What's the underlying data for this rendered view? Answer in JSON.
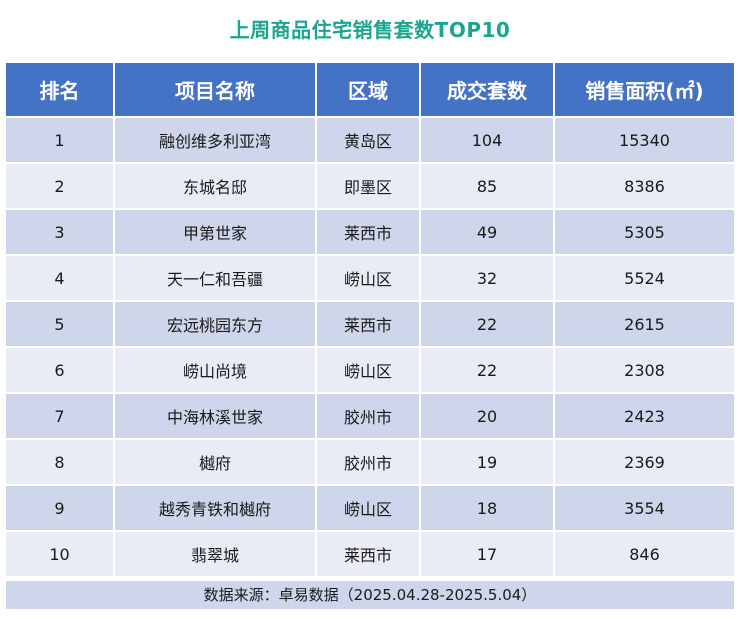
{
  "title": "上周商品住宅销售套数TOP10",
  "chart_data": {
    "type": "table",
    "columns": [
      "排名",
      "项目名称",
      "区域",
      "成交套数",
      "销售面积(㎡)"
    ],
    "rows": [
      [
        "1",
        "融创维多利亚湾",
        "黄岛区",
        "104",
        "15340"
      ],
      [
        "2",
        "东城名邸",
        "即墨区",
        "85",
        "8386"
      ],
      [
        "3",
        "甲第世家",
        "莱西市",
        "49",
        "5305"
      ],
      [
        "4",
        "天一仁和吾疆",
        "崂山区",
        "32",
        "5524"
      ],
      [
        "5",
        "宏远桃园东方",
        "莱西市",
        "22",
        "2615"
      ],
      [
        "6",
        "崂山尚境",
        "崂山区",
        "22",
        "2308"
      ],
      [
        "7",
        "中海林溪世家",
        "胶州市",
        "20",
        "2423"
      ],
      [
        "8",
        "樾府",
        "胶州市",
        "19",
        "2369"
      ],
      [
        "9",
        "越秀青铁和樾府",
        "崂山区",
        "18",
        "3554"
      ],
      [
        "10",
        "翡翠城",
        "莱西市",
        "17",
        "846"
      ]
    ]
  },
  "source": "数据来源：卓易数据（2025.04.28-2025.5.04）",
  "colors": {
    "title": "#1aa591",
    "header_bg": "#4472c4",
    "row_dark": "#cfd5ea",
    "row_light": "#e9ebf5"
  }
}
